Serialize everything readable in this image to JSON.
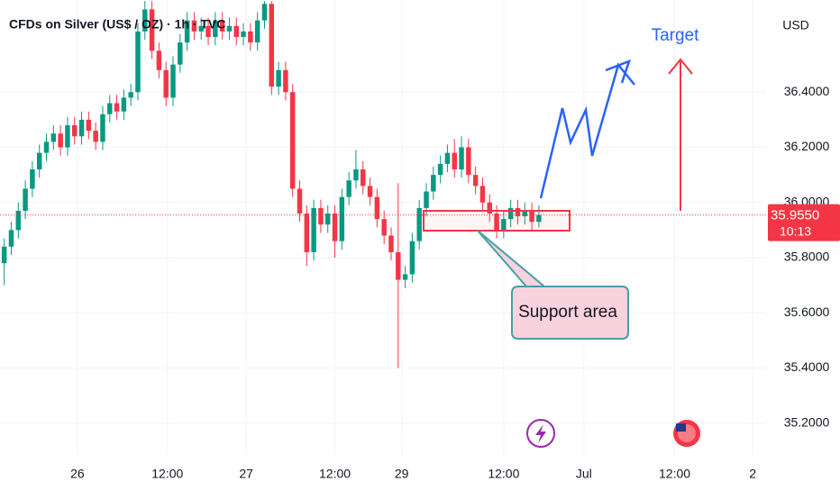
{
  "chart_data": {
    "type": "candlestick",
    "title": "CFDs on Silver (US$ / OZ) · 1h · TVC",
    "currency": "USD",
    "up_color": "#089981",
    "down_color": "#f23645",
    "open": [
      35.78,
      35.84,
      35.9,
      35.97,
      36.05,
      36.12,
      36.18,
      36.22,
      36.25,
      36.2,
      36.28,
      36.24,
      36.3,
      36.26,
      36.22,
      36.32,
      36.36,
      36.33,
      36.38,
      36.4,
      36.62,
      36.7,
      36.55,
      36.48,
      36.38,
      36.5,
      36.58,
      36.66,
      36.62,
      36.64,
      36.6,
      36.66,
      36.62,
      36.64,
      36.6,
      36.62,
      36.58,
      36.66,
      36.72,
      36.42,
      36.48,
      36.4,
      36.05,
      35.96,
      35.82,
      35.98,
      35.92,
      35.96,
      35.86,
      36.02,
      36.08,
      36.12,
      36.06,
      36.02,
      35.94,
      35.88,
      35.82,
      35.72,
      35.74,
      35.86,
      35.98,
      36.04,
      36.1,
      36.14,
      36.18,
      36.12,
      36.2,
      36.1,
      36.06,
      36.0,
      35.96,
      35.9,
      35.94,
      35.98,
      35.95,
      35.97,
      35.93
    ],
    "high": [
      35.87,
      35.93,
      36.0,
      36.08,
      36.15,
      36.21,
      36.25,
      36.28,
      36.28,
      36.31,
      36.31,
      36.33,
      36.33,
      36.29,
      36.35,
      36.39,
      36.39,
      36.41,
      36.43,
      36.65,
      36.73,
      36.73,
      36.58,
      36.51,
      36.53,
      36.61,
      36.69,
      36.69,
      36.67,
      36.67,
      36.69,
      36.69,
      36.67,
      36.67,
      36.65,
      36.65,
      36.69,
      36.73,
      36.73,
      36.51,
      36.51,
      36.43,
      36.08,
      35.99,
      36.01,
      36.01,
      35.99,
      35.99,
      36.05,
      36.11,
      36.19,
      36.15,
      36.09,
      36.05,
      35.97,
      35.91,
      36.07,
      35.77,
      35.89,
      36.01,
      36.07,
      36.13,
      36.17,
      36.21,
      36.23,
      36.24,
      36.23,
      36.13,
      36.09,
      36.03,
      35.99,
      35.97,
      36.01,
      36.01,
      36.0,
      36.0,
      35.99
    ],
    "low": [
      35.7,
      35.81,
      35.87,
      35.94,
      36.02,
      36.09,
      36.15,
      36.19,
      36.17,
      36.17,
      36.21,
      36.21,
      36.23,
      36.19,
      36.19,
      36.29,
      36.3,
      36.3,
      36.35,
      36.37,
      36.59,
      36.52,
      36.45,
      36.35,
      36.35,
      36.47,
      36.55,
      36.59,
      36.59,
      36.57,
      36.57,
      36.59,
      36.59,
      36.57,
      36.57,
      36.55,
      36.55,
      36.63,
      36.39,
      36.39,
      36.37,
      36.02,
      35.93,
      35.77,
      35.79,
      35.89,
      35.89,
      35.8,
      35.83,
      35.99,
      36.05,
      36.03,
      35.99,
      35.91,
      35.85,
      35.79,
      35.4,
      35.69,
      35.71,
      35.83,
      35.95,
      36.01,
      36.07,
      36.11,
      36.09,
      36.09,
      36.07,
      36.03,
      35.97,
      35.93,
      35.87,
      35.87,
      35.91,
      35.92,
      35.92,
      35.9,
      35.91
    ],
    "close": [
      35.84,
      35.9,
      35.97,
      36.05,
      36.12,
      36.18,
      36.22,
      36.25,
      36.2,
      36.28,
      36.24,
      36.3,
      36.26,
      36.22,
      36.32,
      36.36,
      36.33,
      36.38,
      36.4,
      36.62,
      36.7,
      36.55,
      36.48,
      36.38,
      36.5,
      36.58,
      36.66,
      36.62,
      36.64,
      36.6,
      36.66,
      36.62,
      36.64,
      36.6,
      36.62,
      36.58,
      36.66,
      36.72,
      36.42,
      36.48,
      36.4,
      36.05,
      35.96,
      35.82,
      35.98,
      35.92,
      35.96,
      35.86,
      36.02,
      36.08,
      36.12,
      36.06,
      36.02,
      35.94,
      35.88,
      35.82,
      35.72,
      35.74,
      35.86,
      35.98,
      36.04,
      36.1,
      36.14,
      36.18,
      36.12,
      36.2,
      36.1,
      36.06,
      36.0,
      35.96,
      35.9,
      35.94,
      35.98,
      35.95,
      35.97,
      35.93,
      35.955
    ],
    "xlim": [
      -0.6,
      108.3
    ],
    "xticks": [
      {
        "value": 10.4,
        "label": "26"
      },
      {
        "value": 23.2,
        "label": "12:00"
      },
      {
        "value": 34.4,
        "label": "27"
      },
      {
        "value": 47,
        "label": "12:00"
      },
      {
        "value": 56.5,
        "label": "29"
      },
      {
        "value": 71,
        "label": "12:00"
      },
      {
        "value": 82.4,
        "label": "Jul"
      },
      {
        "value": 95.3,
        "label": "12:00"
      },
      {
        "value": 106.4,
        "label": "2"
      }
    ],
    "ylim": [
      35.085,
      36.734
    ],
    "yticks": [
      {
        "value": 35.2,
        "label": "35.2000"
      },
      {
        "value": 35.4,
        "label": "35.4000"
      },
      {
        "value": 35.6,
        "label": "35.6000"
      },
      {
        "value": 35.8,
        "label": "35.8000"
      },
      {
        "value": 36.0,
        "label": "36.0000"
      },
      {
        "value": 36.2,
        "label": "36.2000"
      },
      {
        "value": 36.4,
        "label": "36.4000"
      }
    ],
    "grid": true,
    "current_price": 35.955,
    "current_price_label": "35.9550",
    "countdown": "10:13",
    "annotations": {
      "target": "Target",
      "support": "Support area"
    }
  }
}
